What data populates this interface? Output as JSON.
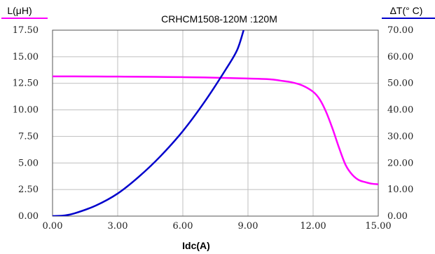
{
  "chart_data": {
    "type": "line",
    "title": "CRHCM1508-120M :120M",
    "xlabel": "Idc(A)",
    "ylabel_left": "L(μH)",
    "ylabel_right": "ΔT(° C)",
    "xlim": [
      0,
      15
    ],
    "ylim_left": [
      0,
      17.5
    ],
    "ylim_right": [
      0,
      70
    ],
    "grid": true,
    "x_ticks": [
      "0.00",
      "3.00",
      "6.00",
      "9.00",
      "12.00",
      "15.00"
    ],
    "y_left_ticks": [
      "0.00",
      "2.50",
      "5.00",
      "7.50",
      "10.00",
      "12.50",
      "15.00",
      "17.50"
    ],
    "y_right_ticks": [
      "0.00",
      "10.00",
      "20.00",
      "30.00",
      "40.00",
      "50.00",
      "60.00",
      "70.00"
    ],
    "colors": {
      "inductance": "#ff00ff",
      "temperature": "#0000cc",
      "grid": "#bfbfbf",
      "frame": "#555555"
    },
    "series": [
      {
        "axis": "left",
        "x": [
          0,
          1,
          2,
          3,
          4,
          5,
          6,
          7,
          8,
          9,
          10,
          10.5,
          11,
          11.5,
          12,
          12.3,
          12.6,
          12.9,
          13.2,
          13.5,
          13.8,
          14.1,
          14.4,
          14.7,
          15
        ],
        "values": [
          13.15,
          13.15,
          13.14,
          13.13,
          13.12,
          13.1,
          13.08,
          13.05,
          13.0,
          12.95,
          12.88,
          12.75,
          12.6,
          12.3,
          11.7,
          11.0,
          9.8,
          8.2,
          6.4,
          4.8,
          3.9,
          3.4,
          3.2,
          3.05,
          3.0
        ]
      },
      {
        "axis": "right",
        "x": [
          0,
          0.5,
          1,
          2,
          3,
          4,
          5,
          6,
          7,
          8,
          8.5,
          8.8
        ],
        "values": [
          0,
          0.2,
          1.0,
          4.0,
          8.5,
          15.0,
          22.8,
          32.0,
          43.0,
          55.5,
          62.5,
          70.0
        ]
      }
    ]
  }
}
